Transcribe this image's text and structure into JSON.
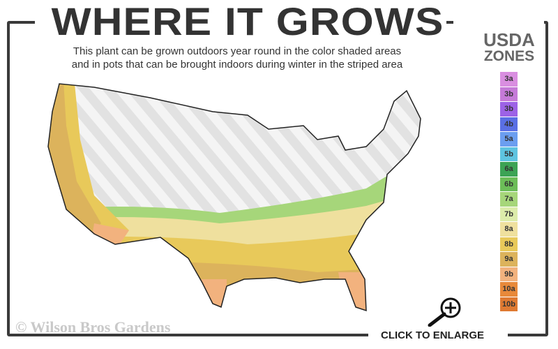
{
  "header": {
    "title": "WHERE IT GROWS",
    "subtitle_line1": "This plant can be grown outdoors year round in the color shaded areas",
    "subtitle_line2": "and in pots that can be brought indoors during winter in the striped area"
  },
  "legend": {
    "title_line1": "USDA",
    "title_line2": "ZONES",
    "zones": [
      {
        "label": "3a",
        "color": "#d98ee0"
      },
      {
        "label": "3b",
        "color": "#c57ad8"
      },
      {
        "label": "3b",
        "color": "#9d62e6"
      },
      {
        "label": "4b",
        "color": "#5a6fe4"
      },
      {
        "label": "5a",
        "color": "#6b9ef0"
      },
      {
        "label": "5b",
        "color": "#5ec4e0"
      },
      {
        "label": "6a",
        "color": "#3ca355"
      },
      {
        "label": "6b",
        "color": "#6cbd58"
      },
      {
        "label": "7a",
        "color": "#a6d67a"
      },
      {
        "label": "7b",
        "color": "#dcecaa"
      },
      {
        "label": "8a",
        "color": "#efe09e"
      },
      {
        "label": "8b",
        "color": "#e8c95a"
      },
      {
        "label": "9a",
        "color": "#dcb35c"
      },
      {
        "label": "9b",
        "color": "#f2b27e"
      },
      {
        "label": "10a",
        "color": "#e8893a"
      },
      {
        "label": "10b",
        "color": "#df7a32"
      }
    ]
  },
  "footer": {
    "copyright": "© Wilson Bros Gardens",
    "enlarge_label": "CLICK TO ENLARGE",
    "enlarge_icon": "magnifier-plus-icon"
  }
}
